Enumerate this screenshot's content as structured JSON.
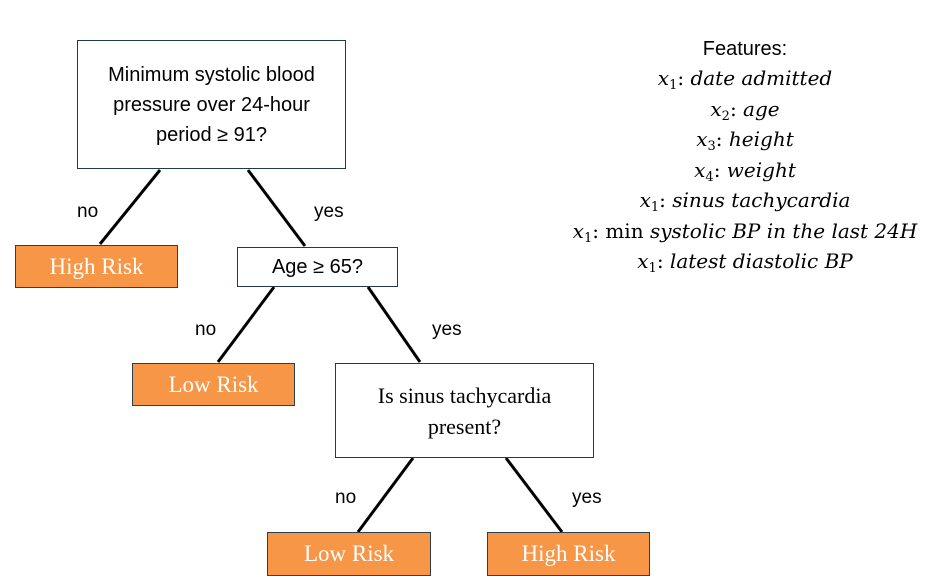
{
  "nodes": {
    "root": {
      "text": "Minimum systolic blood pressure over 24-hour period ≥ 91?"
    },
    "age": {
      "text": "Age ≥ 65?"
    },
    "sinus": {
      "text": "Is sinus tachycardia present?"
    }
  },
  "leaves": {
    "root_no": {
      "text": "High Risk",
      "color": "#f79646"
    },
    "age_no": {
      "text": "Low Risk",
      "color": "#f79646"
    },
    "sinus_no": {
      "text": "Low Risk",
      "color": "#f79646"
    },
    "sinus_yes": {
      "text": "High Risk",
      "color": "#f79646"
    }
  },
  "edge_labels": {
    "root_no": "no",
    "root_yes": "yes",
    "age_no": "no",
    "age_yes": "yes",
    "sinus_no": "no",
    "sinus_yes": "yes"
  },
  "features": {
    "title": "Features:",
    "items": [
      {
        "var": "x",
        "sub": "1",
        "sep": ":",
        "prefix": "",
        "desc": "date admitted"
      },
      {
        "var": "x",
        "sub": "2",
        "sep": ":",
        "prefix": "",
        "desc": "age"
      },
      {
        "var": "x",
        "sub": "3",
        "sep": ":",
        "prefix": "",
        "desc": "height"
      },
      {
        "var": "x",
        "sub": "4",
        "sep": ":",
        "prefix": "",
        "desc": "weight"
      },
      {
        "var": "x",
        "sub": "1",
        "sep": ":",
        "prefix": "",
        "desc": "sinus tachycardia"
      },
      {
        "var": "x",
        "sub": "1",
        "sep": ":",
        "prefix": "min",
        "desc": "systolic BP in the last 24H"
      },
      {
        "var": "x",
        "sub": "1",
        "sep": ":",
        "prefix": "",
        "desc": "latest diastolic BP"
      }
    ]
  }
}
